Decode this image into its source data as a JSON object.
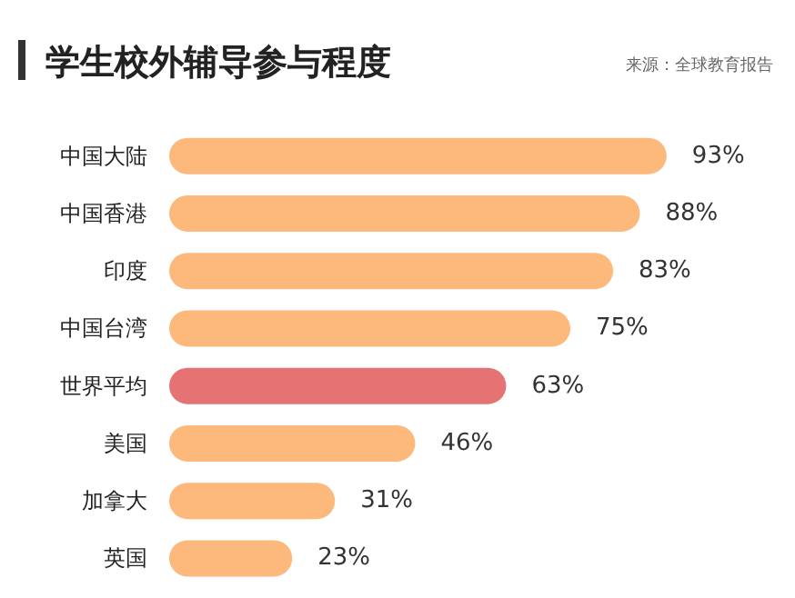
{
  "chart_data": {
    "type": "bar",
    "orientation": "horizontal",
    "title": "学生校外辅导参与程度",
    "annotations": [
      "来源：全球教育报告"
    ],
    "categories": [
      "中国大陆",
      "中国香港",
      "印度",
      "中国台湾",
      "世界平均",
      "美国",
      "加拿大",
      "英国"
    ],
    "values": [
      93,
      88,
      83,
      75,
      63,
      46,
      31,
      23
    ],
    "value_labels": [
      "93%",
      "88%",
      "83%",
      "75%",
      "63%",
      "46%",
      "31%",
      "23%"
    ],
    "colors": [
      "#fdb87c",
      "#fdb87c",
      "#fdb87c",
      "#fdb87c",
      "#e57373",
      "#fdb87c",
      "#fdb87c",
      "#fdb87c"
    ]
  }
}
